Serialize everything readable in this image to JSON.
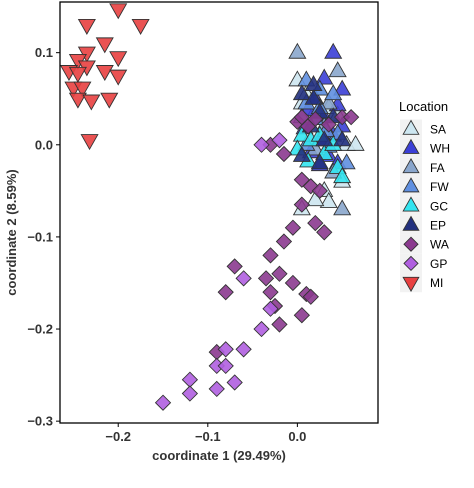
{
  "chart_data": {
    "type": "scatter",
    "xlabel": "coordinate 1 (29.49%)",
    "ylabel": "coordinate 2 (8.59%)",
    "xlim": [
      -0.265,
      0.09
    ],
    "ylim": [
      -0.302,
      0.155
    ],
    "x_ticks": [
      {
        "value": -0.2,
        "label": "−0.2"
      },
      {
        "value": -0.1,
        "label": "−0.1"
      },
      {
        "value": 0.0,
        "label": "0.0"
      }
    ],
    "y_ticks": [
      {
        "value": 0.1,
        "label": "0.1"
      },
      {
        "value": 0.0,
        "label": "0.0"
      },
      {
        "value": -0.1,
        "label": "−0.1"
      },
      {
        "value": -0.2,
        "label": "−0.2"
      },
      {
        "value": -0.3,
        "label": "−0.3"
      }
    ],
    "grid": false,
    "legend_title": "Location",
    "legend_position": "right",
    "series": [
      {
        "name": "SA",
        "shape": "triangle-up",
        "color": "#cde6f0",
        "points": [
          [
            0.0,
            0.07
          ],
          [
            0.005,
            0.045
          ],
          [
            0.01,
            0.055
          ],
          [
            0.015,
            0.028
          ],
          [
            0.025,
            0.06
          ],
          [
            0.035,
            0.04
          ],
          [
            0.045,
            0.032
          ],
          [
            0.055,
            0.0
          ],
          [
            0.065,
            0.0
          ],
          [
            0.03,
            -0.05
          ],
          [
            0.035,
            -0.062
          ],
          [
            0.02,
            -0.06
          ],
          [
            0.05,
            -0.04
          ],
          [
            0.005,
            -0.07
          ]
        ]
      },
      {
        "name": "WH",
        "shape": "triangle-up",
        "color": "#3b3fd6",
        "points": [
          [
            0.04,
            0.1
          ],
          [
            0.03,
            0.072
          ],
          [
            0.05,
            0.06
          ],
          [
            0.02,
            0.05
          ],
          [
            0.045,
            0.043
          ],
          [
            0.012,
            0.038
          ],
          [
            0.03,
            0.03
          ],
          [
            0.05,
            0.02
          ],
          [
            0.04,
            0.01
          ],
          [
            0.025,
            0.005
          ],
          [
            0.015,
            -0.008
          ],
          [
            0.035,
            -0.012
          ],
          [
            0.025,
            -0.022
          ],
          [
            0.045,
            -0.02
          ],
          [
            0.008,
            0.018
          ]
        ]
      },
      {
        "name": "FA",
        "shape": "triangle-up",
        "color": "#8aa6cc",
        "points": [
          [
            0.0,
            0.1
          ],
          [
            0.045,
            0.08
          ],
          [
            0.005,
            0.03
          ],
          [
            0.03,
            0.02
          ],
          [
            0.02,
            -0.005
          ],
          [
            0.04,
            -0.03
          ],
          [
            0.05,
            -0.07
          ],
          [
            0.035,
            0.045
          ]
        ]
      },
      {
        "name": "FW",
        "shape": "triangle-up",
        "color": "#5f8fe0",
        "points": [
          [
            0.01,
            0.07
          ],
          [
            0.025,
            0.06
          ],
          [
            0.04,
            0.055
          ],
          [
            0.01,
            0.045
          ],
          [
            0.02,
            0.028
          ],
          [
            0.045,
            0.012
          ],
          [
            0.01,
            0.0
          ],
          [
            0.035,
            -0.002
          ],
          [
            0.055,
            -0.02
          ],
          [
            0.025,
            0.04
          ],
          [
            0.032,
            0.015
          ]
        ]
      },
      {
        "name": "GC",
        "shape": "triangle-up",
        "color": "#33e4f0",
        "points": [
          [
            0.005,
            0.01
          ],
          [
            0.015,
            0.005
          ],
          [
            0.03,
            -0.01
          ],
          [
            0.045,
            -0.025
          ],
          [
            0.05,
            -0.035
          ],
          [
            0.04,
            0.0
          ],
          [
            0.0,
            -0.005
          ],
          [
            0.025,
            0.01
          ],
          [
            0.012,
            -0.018
          ]
        ]
      },
      {
        "name": "EP",
        "shape": "triangle-up",
        "color": "#22307e",
        "points": [
          [
            0.005,
            0.055
          ],
          [
            0.018,
            0.05
          ],
          [
            0.025,
            0.035
          ],
          [
            0.04,
            0.03
          ],
          [
            0.015,
            0.02
          ],
          [
            0.03,
            0.005
          ],
          [
            0.05,
            0.005
          ],
          [
            0.005,
            -0.012
          ],
          [
            0.025,
            -0.02
          ],
          [
            0.018,
            0.065
          ]
        ]
      },
      {
        "name": "WA",
        "shape": "diamond",
        "color": "#8b3a8f",
        "points": [
          [
            0.0,
            0.025
          ],
          [
            0.005,
            0.03
          ],
          [
            0.012,
            0.02
          ],
          [
            0.02,
            0.028
          ],
          [
            0.035,
            0.022
          ],
          [
            0.05,
            0.03
          ],
          [
            0.06,
            0.03
          ],
          [
            -0.03,
            0.0
          ],
          [
            -0.015,
            -0.01
          ],
          [
            0.005,
            -0.038
          ],
          [
            0.015,
            -0.045
          ],
          [
            0.025,
            -0.05
          ],
          [
            0.02,
            -0.085
          ],
          [
            0.005,
            -0.065
          ],
          [
            -0.005,
            -0.09
          ],
          [
            0.03,
            -0.095
          ],
          [
            -0.015,
            -0.105
          ],
          [
            -0.03,
            -0.12
          ],
          [
            -0.02,
            -0.14
          ],
          [
            -0.035,
            -0.145
          ],
          [
            -0.07,
            -0.132
          ],
          [
            -0.005,
            -0.15
          ],
          [
            0.01,
            -0.162
          ],
          [
            -0.08,
            -0.16
          ],
          [
            -0.03,
            -0.16
          ],
          [
            -0.025,
            -0.175
          ],
          [
            0.015,
            -0.165
          ],
          [
            -0.02,
            -0.195
          ],
          [
            -0.09,
            -0.225
          ],
          [
            0.005,
            -0.185
          ]
        ]
      },
      {
        "name": "GP",
        "shape": "diamond",
        "color": "#b05fe0",
        "points": [
          [
            -0.04,
            0.0
          ],
          [
            -0.02,
            0.005
          ],
          [
            -0.06,
            -0.145
          ],
          [
            -0.03,
            -0.178
          ],
          [
            -0.04,
            -0.2
          ],
          [
            -0.06,
            -0.222
          ],
          [
            -0.08,
            -0.222
          ],
          [
            -0.09,
            -0.24
          ],
          [
            -0.12,
            -0.255
          ],
          [
            -0.07,
            -0.258
          ],
          [
            -0.09,
            -0.265
          ],
          [
            -0.12,
            -0.27
          ],
          [
            -0.15,
            -0.28
          ],
          [
            -0.08,
            -0.24
          ]
        ]
      },
      {
        "name": "MI",
        "shape": "triangle-down",
        "color": "#e84040",
        "points": [
          [
            -0.2,
            0.147
          ],
          [
            -0.175,
            0.13
          ],
          [
            -0.235,
            0.13
          ],
          [
            -0.215,
            0.11
          ],
          [
            -0.2,
            0.095
          ],
          [
            -0.235,
            0.1
          ],
          [
            -0.245,
            0.092
          ],
          [
            -0.255,
            0.08
          ],
          [
            -0.235,
            0.085
          ],
          [
            -0.25,
            0.062
          ],
          [
            -0.215,
            0.08
          ],
          [
            -0.24,
            0.062
          ],
          [
            -0.245,
            0.05
          ],
          [
            -0.23,
            0.048
          ],
          [
            -0.21,
            0.05
          ],
          [
            -0.2,
            0.075
          ],
          [
            -0.245,
            0.078
          ],
          [
            -0.232,
            0.005
          ]
        ]
      }
    ]
  }
}
